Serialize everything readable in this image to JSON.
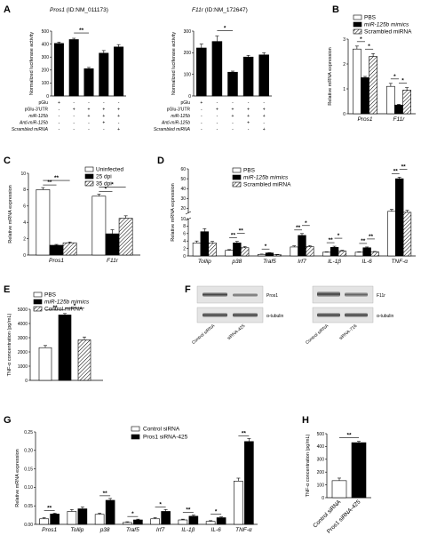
{
  "chart_data": [
    {
      "panel": "A",
      "type": "bar",
      "title_gene": "Pros1",
      "title_id": "(ID:NM_011173)",
      "ylabel": "Normalized luciferase activity",
      "ylim": [
        0,
        500
      ],
      "yticks": [
        0,
        100,
        200,
        300,
        400,
        500
      ],
      "values": [
        405,
        435,
        210,
        330,
        378
      ],
      "errors": [
        10,
        10,
        10,
        20,
        18
      ],
      "colors": [
        "#000000",
        "#000000",
        "#000000",
        "#000000",
        "#000000"
      ],
      "table_rows": [
        {
          "label": "pGlu",
          "signs": [
            "+",
            "-",
            "-",
            "-",
            "-"
          ]
        },
        {
          "label": "pGlu-3'UTR",
          "signs": [
            "-",
            "+",
            "+",
            "+",
            "+"
          ]
        },
        {
          "label": "miR-125b",
          "signs": [
            "-",
            "-",
            "+",
            "+",
            "+"
          ]
        },
        {
          "label": "Anti-miR-125b",
          "signs": [
            "-",
            "-",
            "-",
            "+",
            "-"
          ]
        },
        {
          "label": "Scrambled miRNA",
          "signs": [
            "-",
            "-",
            "-",
            "-",
            "+"
          ]
        }
      ],
      "sig": [
        {
          "from": 1,
          "to": 2,
          "label": "**"
        }
      ]
    },
    {
      "panel": "A2",
      "type": "bar",
      "title_gene": "F11r",
      "title_id": "(ID:NM_172647)",
      "ylabel": "Normalized luciferase activity",
      "ylim": [
        0,
        300
      ],
      "yticks": [
        0,
        100,
        200,
        300
      ],
      "values": [
        222,
        252,
        110,
        180,
        190
      ],
      "errors": [
        18,
        25,
        5,
        8,
        10
      ],
      "colors": [
        "#000000",
        "#000000",
        "#000000",
        "#000000",
        "#000000"
      ],
      "table_rows": [
        {
          "label": "pGlu",
          "signs": [
            "+",
            "-",
            "-",
            "-",
            "-"
          ]
        },
        {
          "label": "pGlu-3'UTR",
          "signs": [
            "-",
            "+",
            "+",
            "+",
            "+"
          ]
        },
        {
          "label": "miR-125b",
          "signs": [
            "-",
            "-",
            "+",
            "+",
            "+"
          ]
        },
        {
          "label": "Anti-miR-125b",
          "signs": [
            "-",
            "-",
            "-",
            "+",
            "-"
          ]
        },
        {
          "label": "Scrambled miRNA",
          "signs": [
            "-",
            "-",
            "-",
            "-",
            "+"
          ]
        }
      ],
      "sig": [
        {
          "from": 1,
          "to": 2,
          "label": "*"
        }
      ]
    },
    {
      "panel": "B",
      "type": "bar",
      "ylabel": "Relative mRNA expression",
      "ylim": [
        0,
        3
      ],
      "yticks": [
        0,
        1,
        2,
        3
      ],
      "categories": [
        "Pros1",
        "F11r"
      ],
      "series": [
        {
          "name": "PBS",
          "values": [
            2.6,
            1.1
          ],
          "errors": [
            0.12,
            0.12
          ]
        },
        {
          "name": "miR-125b mimics",
          "values": [
            1.45,
            0.35
          ],
          "errors": [
            0.05,
            0.03
          ]
        },
        {
          "name": "Scrambled miRNA",
          "values": [
            2.3,
            0.95
          ],
          "errors": [
            0.12,
            0.1
          ]
        }
      ],
      "sig": [
        {
          "cat": 0,
          "from": 0,
          "to": 1,
          "label": "*"
        },
        {
          "cat": 0,
          "from": 1,
          "to": 2,
          "label": "*"
        },
        {
          "cat": 1,
          "from": 0,
          "to": 1,
          "label": "*"
        },
        {
          "cat": 1,
          "from": 1,
          "to": 2,
          "label": "*"
        }
      ]
    },
    {
      "panel": "C",
      "type": "bar",
      "ylabel": "Relative mRNA expression",
      "ylim": [
        0,
        10
      ],
      "yticks": [
        0,
        2,
        4,
        6,
        8,
        10
      ],
      "categories": [
        "Pros1",
        "F11r"
      ],
      "series": [
        {
          "name": "Uninfected",
          "values": [
            8.0,
            7.2
          ],
          "errors": [
            0.25,
            0.25
          ]
        },
        {
          "name": "25 dpi",
          "values": [
            1.2,
            2.6
          ],
          "errors": [
            0.1,
            0.5
          ]
        },
        {
          "name": "35 dpi",
          "values": [
            1.5,
            4.5
          ],
          "errors": [
            0.1,
            0.3
          ]
        }
      ],
      "sig": [
        {
          "cat": 0,
          "from": 0,
          "to": 1,
          "label": "**"
        },
        {
          "cat": 0,
          "from": 0,
          "to": 2,
          "label": "**"
        },
        {
          "cat": 1,
          "from": 0,
          "to": 1,
          "label": "*"
        },
        {
          "cat": 1,
          "from": 0,
          "to": 2,
          "label": "*"
        }
      ]
    },
    {
      "panel": "D",
      "type": "bar",
      "ylabel": "Relative mRNA expression",
      "ylim": [
        0,
        60
      ],
      "yticks": [
        0,
        2,
        4,
        6,
        8,
        10,
        20,
        30,
        40,
        50,
        60
      ],
      "axis_break": [
        10,
        15
      ],
      "categories": [
        "Tollip",
        "p38",
        "Traf5",
        "Irf7",
        "IL-1β",
        "IL-6",
        "TNF-α"
      ],
      "series": [
        {
          "name": "PBS",
          "values": [
            3.5,
            1.5,
            0.4,
            2.4,
            1.0,
            1.0,
            17
          ],
          "errors": [
            0.5,
            0.2,
            0.1,
            0.3,
            0.1,
            0.1,
            2
          ]
        },
        {
          "name": "miR-125b mimics",
          "values": [
            6.5,
            3.5,
            0.8,
            5.5,
            2.3,
            2.2,
            50
          ],
          "errors": [
            0.8,
            0.4,
            0.1,
            0.5,
            0.3,
            0.2,
            1.5
          ]
        },
        {
          "name": "Scrambled miRNA",
          "values": [
            3.5,
            2.2,
            0.3,
            2.5,
            1.3,
            1.1,
            16
          ],
          "errors": [
            0.4,
            0.3,
            0.1,
            0.3,
            0.2,
            0.1,
            2
          ]
        }
      ],
      "sig": [
        {
          "cat": 1,
          "from": 0,
          "to": 1,
          "label": "**"
        },
        {
          "cat": 1,
          "from": 1,
          "to": 2,
          "label": "**"
        },
        {
          "cat": 2,
          "from": 0,
          "to": 1,
          "label": "*"
        },
        {
          "cat": 3,
          "from": 0,
          "to": 1,
          "label": "**"
        },
        {
          "cat": 3,
          "from": 1,
          "to": 2,
          "label": "*"
        },
        {
          "cat": 4,
          "from": 0,
          "to": 1,
          "label": "**"
        },
        {
          "cat": 4,
          "from": 1,
          "to": 2,
          "label": "*"
        },
        {
          "cat": 5,
          "from": 0,
          "to": 1,
          "label": "**"
        },
        {
          "cat": 5,
          "from": 1,
          "to": 2,
          "label": "**"
        },
        {
          "cat": 6,
          "from": 0,
          "to": 1,
          "label": "**"
        },
        {
          "cat": 6,
          "from": 1,
          "to": 2,
          "label": "**"
        }
      ]
    },
    {
      "panel": "E",
      "type": "bar",
      "ylabel": "TNF-α concentration (pg/mL)",
      "ylim": [
        0,
        5000
      ],
      "yticks": [
        0,
        1000,
        2000,
        3000,
        4000,
        5000
      ],
      "series": [
        {
          "name": "PBS",
          "values": [
            2300
          ],
          "errors": [
            150
          ]
        },
        {
          "name": "miR-125b mimics",
          "values": [
            4600
          ],
          "errors": [
            100
          ]
        },
        {
          "name": "Control miRNA",
          "values": [
            2850
          ],
          "errors": [
            200
          ]
        }
      ],
      "sig": [
        {
          "from": 0,
          "to": 1,
          "label": "**"
        },
        {
          "from": 1,
          "to": 2,
          "label": "*"
        }
      ]
    },
    {
      "panel": "G",
      "type": "bar",
      "ylabel": "Relative mRNA expression",
      "ylim": [
        0,
        0.25
      ],
      "yticks": [
        0.0,
        0.05,
        0.1,
        0.15,
        0.2,
        0.25
      ],
      "categories": [
        "Pros1",
        "Tollip",
        "p38",
        "Traf5",
        "Irf7",
        "IL-1β",
        "IL-6",
        "TNF-α"
      ],
      "series": [
        {
          "name": "Control siRNA",
          "values": [
            0.015,
            0.035,
            0.027,
            0.005,
            0.015,
            0.012,
            0.008,
            0.117
          ],
          "errors": [
            0.003,
            0.005,
            0.003,
            0.002,
            0.003,
            0.002,
            0.002,
            0.008
          ]
        },
        {
          "name": "Pros1 siRNA-425",
          "values": [
            0.028,
            0.042,
            0.065,
            0.012,
            0.035,
            0.022,
            0.018,
            0.224
          ],
          "errors": [
            0.002,
            0.005,
            0.005,
            0.002,
            0.005,
            0.003,
            0.002,
            0.008
          ]
        }
      ],
      "sig": [
        "**",
        "",
        "**",
        "*",
        "*",
        "**",
        "*",
        "**"
      ]
    },
    {
      "panel": "H",
      "type": "bar",
      "ylabel": "TNF-α concentration (pg/mL)",
      "ylim": [
        0,
        500
      ],
      "yticks": [
        0,
        100,
        200,
        300,
        400,
        500
      ],
      "categories": [
        "Control siRNA",
        "Pros1 siRNA-425"
      ],
      "values": [
        133,
        430
      ],
      "errors": [
        20,
        10
      ],
      "sig": [
        {
          "from": 0,
          "to": 1,
          "label": "**"
        }
      ]
    }
  ],
  "panels": {
    "a": "A",
    "b": "B",
    "c": "C",
    "d": "D",
    "e": "E",
    "f": "F",
    "g": "G",
    "h": "H"
  },
  "blots": {
    "left_target": "Pros1",
    "left_control": "α-tubulin",
    "left_lanes": [
      "Control siRNA",
      "siRNA-425"
    ],
    "right_target": "F11r",
    "right_control": "α-tubulin",
    "right_lanes": [
      "Control siRNA",
      "siRNA-716"
    ]
  }
}
